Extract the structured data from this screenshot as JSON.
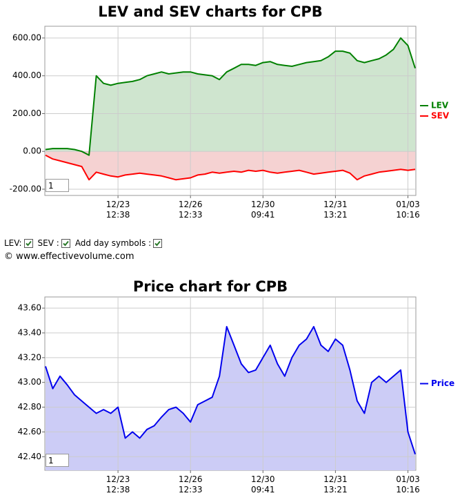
{
  "chart_data": [
    {
      "type": "line",
      "title": "LEV and SEV charts for CPB",
      "legend": "right",
      "grid": true,
      "categories": [
        null,
        null,
        null,
        null,
        null,
        null,
        null,
        null,
        null,
        null,
        "12/23\n12:38",
        null,
        null,
        null,
        null,
        null,
        null,
        null,
        null,
        null,
        "12/26\n12:33",
        null,
        null,
        null,
        null,
        null,
        null,
        null,
        null,
        null,
        "12/30\n09:41",
        null,
        null,
        null,
        null,
        null,
        null,
        null,
        null,
        null,
        "12/31\n13:21",
        null,
        null,
        null,
        null,
        null,
        null,
        null,
        null,
        null,
        "01/03\n10:16",
        null
      ],
      "ylim": [
        -233,
        662
      ],
      "yticks": [
        {
          "value": 600,
          "label": "600.00"
        },
        {
          "value": 400,
          "label": "400.00"
        },
        {
          "value": 200,
          "label": "200.00"
        },
        {
          "value": 0,
          "label": "0.00"
        },
        {
          "value": -200,
          "label": "-200.00"
        }
      ],
      "series": [
        {
          "name": "LEV",
          "color": "#008000",
          "fill": "#cfe5cf",
          "values": [
            10,
            15,
            15,
            15,
            10,
            0,
            -20,
            400,
            360,
            350,
            360,
            365,
            370,
            380,
            400,
            410,
            420,
            410,
            415,
            420,
            420,
            410,
            405,
            400,
            380,
            420,
            440,
            460,
            460,
            455,
            470,
            475,
            460,
            455,
            450,
            460,
            470,
            475,
            480,
            500,
            530,
            530,
            520,
            480,
            470,
            480,
            490,
            510,
            540,
            600,
            560,
            440
          ]
        },
        {
          "name": "SEV",
          "color": "#ff0000",
          "fill": "#f5d2d2",
          "values": [
            -20,
            -40,
            -50,
            -60,
            -70,
            -80,
            -150,
            -110,
            -120,
            -130,
            -135,
            -125,
            -120,
            -115,
            -120,
            -125,
            -130,
            -140,
            -150,
            -145,
            -140,
            -125,
            -120,
            -110,
            -115,
            -110,
            -105,
            -110,
            -100,
            -105,
            -100,
            -110,
            -115,
            -110,
            -105,
            -100,
            -110,
            -120,
            -115,
            -110,
            -105,
            -100,
            -115,
            -150,
            -130,
            -120,
            -110,
            -105,
            -100,
            -95,
            -100,
            -95
          ]
        }
      ]
    },
    {
      "type": "line",
      "title": "Price chart for CPB",
      "legend": "right",
      "grid": true,
      "categories": [
        null,
        null,
        null,
        null,
        null,
        null,
        null,
        null,
        null,
        null,
        "12/23\n12:38",
        null,
        null,
        null,
        null,
        null,
        null,
        null,
        null,
        null,
        "12/26\n12:33",
        null,
        null,
        null,
        null,
        null,
        null,
        null,
        null,
        null,
        "12/30\n09:41",
        null,
        null,
        null,
        null,
        null,
        null,
        null,
        null,
        null,
        "12/31\n13:21",
        null,
        null,
        null,
        null,
        null,
        null,
        null,
        null,
        null,
        "01/03\n10:16",
        null
      ],
      "ylim": [
        42.29,
        43.69
      ],
      "yticks": [
        {
          "value": 43.6,
          "label": "43.60"
        },
        {
          "value": 43.4,
          "label": "43.40"
        },
        {
          "value": 43.2,
          "label": "43.20"
        },
        {
          "value": 43.0,
          "label": "43.00"
        },
        {
          "value": 42.8,
          "label": "42.80"
        },
        {
          "value": 42.6,
          "label": "42.60"
        },
        {
          "value": 42.4,
          "label": "42.40"
        }
      ],
      "series": [
        {
          "name": "Price",
          "color": "#0000ee",
          "fill": "#ccccf6",
          "values": [
            43.13,
            42.95,
            43.05,
            42.98,
            42.9,
            42.85,
            42.8,
            42.75,
            42.78,
            42.75,
            42.8,
            42.55,
            42.6,
            42.55,
            42.62,
            42.65,
            42.72,
            42.78,
            42.8,
            42.75,
            42.68,
            42.82,
            42.85,
            42.88,
            43.05,
            43.45,
            43.3,
            43.15,
            43.08,
            43.1,
            43.2,
            43.3,
            43.15,
            43.05,
            43.2,
            43.3,
            43.35,
            43.45,
            43.3,
            43.25,
            43.35,
            43.3,
            43.1,
            42.85,
            42.75,
            43.0,
            43.05,
            43.0,
            43.05,
            43.1,
            42.6,
            42.42
          ]
        }
      ]
    }
  ],
  "controls": [
    "LEV:",
    "SEV :",
    "Add day symbols :"
  ],
  "copyright": "© www.effectivevolume.com",
  "zoom_boxes": [
    "1",
    "1"
  ]
}
